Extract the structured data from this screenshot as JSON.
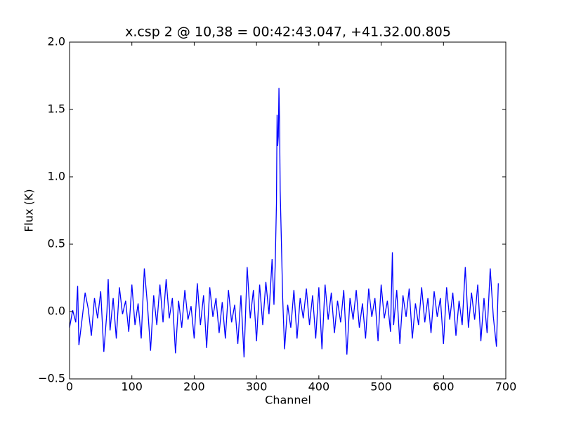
{
  "chart_data": {
    "type": "line",
    "title": "x.csp 2 @ 10,38 = 00:42:43.047, +41.32.00.805",
    "xlabel": "Channel",
    "ylabel": "Flux (K)",
    "xlim": [
      0,
      700
    ],
    "xticks": [
      0,
      100,
      200,
      300,
      400,
      500,
      600,
      700
    ],
    "ylim": [
      -0.5,
      2.0
    ],
    "yticks": [
      {
        "value": -0.5,
        "label": "−0.5"
      },
      {
        "value": 0,
        "label": "0.0"
      },
      0.5,
      {
        "value": 1,
        "label": "1.0"
      },
      1.5,
      {
        "value": 2,
        "label": "2.0"
      }
    ],
    "grid": false,
    "series": [
      {
        "color": "#0000ff",
        "x": [
          0,
          5,
          10,
          13,
          15,
          20,
          25,
          30,
          35,
          40,
          45,
          50,
          55,
          60,
          62,
          65,
          70,
          75,
          80,
          85,
          90,
          95,
          100,
          105,
          110,
          115,
          120,
          125,
          130,
          135,
          140,
          145,
          150,
          155,
          160,
          165,
          170,
          175,
          180,
          185,
          190,
          195,
          200,
          205,
          210,
          215,
          220,
          225,
          230,
          235,
          240,
          245,
          250,
          255,
          260,
          265,
          270,
          275,
          280,
          285,
          290,
          295,
          300,
          305,
          310,
          315,
          320,
          325,
          328,
          330,
          332,
          333,
          334,
          335,
          336,
          337,
          338,
          340,
          342,
          345,
          350,
          355,
          360,
          365,
          370,
          375,
          380,
          385,
          390,
          395,
          400,
          405,
          410,
          415,
          420,
          425,
          430,
          435,
          440,
          445,
          450,
          455,
          460,
          465,
          470,
          475,
          480,
          485,
          490,
          495,
          500,
          505,
          510,
          515,
          518,
          520,
          525,
          530,
          535,
          540,
          545,
          550,
          555,
          560,
          565,
          570,
          575,
          580,
          585,
          590,
          595,
          600,
          605,
          610,
          615,
          620,
          625,
          630,
          635,
          640,
          645,
          650,
          655,
          660,
          665,
          670,
          675,
          680,
          685,
          688
        ],
        "values": [
          -0.12,
          0.01,
          -0.08,
          0.19,
          -0.25,
          -0.06,
          0.14,
          0.02,
          -0.18,
          0.1,
          -0.05,
          0.15,
          -0.3,
          0.0,
          0.24,
          -0.14,
          0.1,
          -0.2,
          0.18,
          -0.02,
          0.08,
          -0.15,
          0.2,
          -0.1,
          0.06,
          -0.2,
          0.32,
          0.05,
          -0.29,
          0.12,
          -0.1,
          0.2,
          -0.08,
          0.24,
          -0.05,
          0.1,
          -0.31,
          0.08,
          -0.12,
          0.16,
          -0.06,
          0.04,
          -0.2,
          0.21,
          -0.1,
          0.12,
          -0.27,
          0.18,
          -0.04,
          0.1,
          -0.16,
          0.07,
          -0.2,
          0.16,
          -0.08,
          0.05,
          -0.24,
          0.12,
          -0.34,
          0.33,
          -0.05,
          0.16,
          -0.22,
          0.2,
          -0.1,
          0.22,
          -0.02,
          0.39,
          0.05,
          0.35,
          0.8,
          1.46,
          1.23,
          1.3,
          1.66,
          1.4,
          0.9,
          0.5,
          0.1,
          -0.28,
          0.05,
          -0.12,
          0.16,
          -0.2,
          0.1,
          -0.05,
          0.17,
          -0.1,
          0.12,
          -0.2,
          0.18,
          -0.28,
          0.2,
          -0.06,
          0.14,
          -0.16,
          0.08,
          -0.08,
          0.16,
          -0.32,
          0.1,
          -0.06,
          0.16,
          -0.12,
          0.06,
          -0.2,
          0.17,
          -0.04,
          0.1,
          -0.22,
          0.2,
          -0.05,
          0.08,
          -0.15,
          0.44,
          -0.1,
          0.16,
          -0.24,
          0.12,
          -0.04,
          0.17,
          -0.2,
          0.06,
          -0.1,
          0.18,
          -0.08,
          0.1,
          -0.16,
          0.15,
          -0.04,
          0.1,
          -0.24,
          0.18,
          -0.06,
          0.14,
          -0.18,
          0.08,
          -0.1,
          0.33,
          -0.12,
          0.14,
          -0.06,
          0.2,
          -0.22,
          0.1,
          -0.16,
          0.32,
          -0.04,
          -0.26,
          0.21
        ]
      }
    ]
  }
}
